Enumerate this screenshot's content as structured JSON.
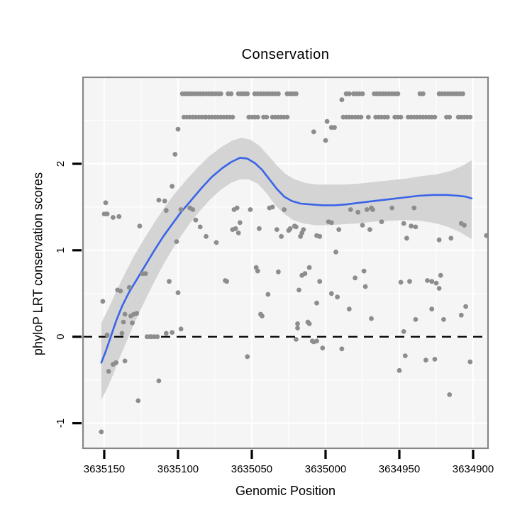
{
  "figure": {
    "title": "Conservation",
    "x_axis_title": "Genomic Position",
    "y_axis_title": "phyloP LRT conservation scores"
  },
  "chart_data": {
    "type": "scatter",
    "title": "Conservation",
    "xlabel": "Genomic Position",
    "ylabel": "phyloP LRT conservation scores",
    "x_axis_reversed": true,
    "x_ticks": [
      3635150,
      3635100,
      3635050,
      3635000,
      3634950,
      3634900
    ],
    "y_ticks": [
      -1,
      0,
      1,
      2
    ],
    "x_range": [
      3635164.4,
      3634889.9
    ],
    "y_range": [
      -1.29,
      3.0
    ],
    "grid": {
      "major": true,
      "minor": true
    },
    "legend": "none",
    "zero_line": {
      "y": 0,
      "style": "dashed"
    },
    "colors": {
      "background": "#ffffff",
      "panel_background": "#f5f5f5",
      "grid": "#ffffff",
      "panel_border": "#878787",
      "point": "#8d8d8d",
      "ribbon": "#d4d4d4",
      "smooth_line": "#3a64e8",
      "zero_line": "#000000",
      "text": "#000000"
    },
    "points": [
      [
        3635149,
        1.55
      ],
      [
        3635150,
        1.42
      ],
      [
        3635148,
        1.42
      ],
      [
        3635144,
        1.38
      ],
      [
        3635140,
        1.39
      ],
      [
        3635126,
        1.28
      ],
      [
        3635113,
        1.58
      ],
      [
        3635109,
        1.57
      ],
      [
        3635108,
        1.46
      ],
      [
        3635098,
        1.47
      ],
      [
        3635092,
        1.49
      ],
      [
        3635090,
        1.47
      ],
      [
        3635088,
        1.35
      ],
      [
        3635085,
        1.27
      ],
      [
        3635081,
        1.16
      ],
      [
        3635074,
        1.09
      ],
      [
        3635101,
        1.1
      ],
      [
        3635124,
        0.73
      ],
      [
        3635122,
        0.73
      ],
      [
        3635106,
        0.64
      ],
      [
        3635141,
        0.54
      ],
      [
        3635139,
        0.53
      ],
      [
        3635133,
        0.57
      ],
      [
        3635100,
        0.51
      ],
      [
        3635151,
        0.41
      ],
      [
        3635100,
        2.4
      ],
      [
        3635102,
        2.11
      ],
      [
        3635104,
        1.74
      ],
      [
        3634989,
        2.74
      ],
      [
        3634999,
        2.49
      ],
      [
        3634996,
        2.42
      ],
      [
        3634994,
        2.42
      ],
      [
        3635008,
        2.37
      ],
      [
        3635000,
        2.27
      ],
      [
        3635062,
        1.47
      ],
      [
        3635060,
        1.49
      ],
      [
        3635051,
        1.47
      ],
      [
        3635038,
        1.49
      ],
      [
        3635036,
        1.5
      ],
      [
        3635028,
        1.47
      ],
      [
        3635058,
        1.32
      ],
      [
        3635063,
        1.24
      ],
      [
        3635061,
        1.25
      ],
      [
        3635059,
        1.2
      ],
      [
        3635045,
        1.25
      ],
      [
        3635033,
        1.24
      ],
      [
        3635030,
        1.16
      ],
      [
        3635025,
        1.23
      ],
      [
        3635024,
        1.25
      ],
      [
        3635021,
        1.28
      ],
      [
        3635020,
        1.27
      ],
      [
        3635017,
        1.16
      ],
      [
        3635016,
        1.2
      ],
      [
        3635015,
        1.24
      ],
      [
        3635006,
        1.17
      ],
      [
        3635004,
        1.16
      ],
      [
        3634998,
        1.33
      ],
      [
        3634996,
        1.32
      ],
      [
        3634991,
        1.24
      ],
      [
        3634993,
        0.98
      ],
      [
        3635047,
        0.8
      ],
      [
        3635046,
        0.76
      ],
      [
        3635032,
        0.75
      ],
      [
        3635011,
        0.8
      ],
      [
        3635016,
        0.71
      ],
      [
        3635014,
        0.73
      ],
      [
        3635004,
        0.64
      ],
      [
        3635068,
        0.65
      ],
      [
        3635067,
        0.64
      ],
      [
        3635018,
        0.54
      ],
      [
        3634996,
        0.5
      ],
      [
        3634992,
        0.46
      ],
      [
        3635039,
        0.49
      ],
      [
        3635006,
        0.39
      ],
      [
        3634984,
        0.32
      ],
      [
        3635044,
        0.26
      ],
      [
        3635019,
        0.15
      ],
      [
        3635012,
        0.17
      ],
      [
        3635011,
        0.15
      ],
      [
        3634978,
        1.44
      ],
      [
        3634972,
        1.47
      ],
      [
        3634969,
        1.49
      ],
      [
        3634968,
        1.47
      ],
      [
        3634983,
        1.47
      ],
      [
        3634955,
        1.49
      ],
      [
        3634940,
        1.49
      ],
      [
        3634975,
        1.29
      ],
      [
        3634970,
        1.24
      ],
      [
        3634962,
        1.33
      ],
      [
        3634947,
        1.31
      ],
      [
        3634942,
        1.28
      ],
      [
        3634939,
        1.27
      ],
      [
        3634908,
        1.31
      ],
      [
        3634906,
        1.29
      ],
      [
        3634945,
        1.14
      ],
      [
        3634923,
        1.12
      ],
      [
        3634915,
        1.14
      ],
      [
        3634891,
        1.17
      ],
      [
        3634980,
        0.68
      ],
      [
        3634974,
        0.76
      ],
      [
        3634973,
        0.58
      ],
      [
        3634949,
        0.63
      ],
      [
        3634943,
        0.64
      ],
      [
        3634931,
        0.65
      ],
      [
        3634928,
        0.64
      ],
      [
        3634925,
        0.62
      ],
      [
        3634922,
        0.71
      ],
      [
        3634923,
        0.56
      ],
      [
        3634928,
        0.32
      ],
      [
        3634905,
        0.35
      ],
      [
        3634908,
        0.25
      ],
      [
        3634969,
        0.21
      ],
      [
        3634939,
        0.2
      ],
      [
        3634920,
        0.2
      ],
      [
        3635136,
        0.26
      ],
      [
        3635132,
        0.24
      ],
      [
        3635130,
        0.26
      ],
      [
        3635128,
        0.27
      ],
      [
        3635137,
        0.17
      ],
      [
        3635131,
        0.16
      ],
      [
        3635148,
        0.02
      ],
      [
        3635138,
        0.04
      ],
      [
        3635043,
        0.24
      ],
      [
        3635098,
        0.09
      ],
      [
        3635108,
        0.04
      ],
      [
        3635104,
        0.05
      ],
      [
        3635121,
        0.0
      ],
      [
        3635119,
        0.0
      ],
      [
        3635118,
        0.0
      ],
      [
        3635116,
        0.0
      ],
      [
        3635114,
        0.0
      ],
      [
        3635053,
        -0.23
      ],
      [
        3635144,
        -0.32
      ],
      [
        3635142,
        -0.3
      ],
      [
        3635136,
        -0.28
      ],
      [
        3635147,
        -0.4
      ],
      [
        3635113,
        -0.51
      ],
      [
        3635127,
        -0.74
      ],
      [
        3635152,
        -1.1
      ],
      [
        3635019,
        0.1
      ],
      [
        3635020,
        -0.03
      ],
      [
        3635009,
        -0.05
      ],
      [
        3635008,
        -0.06
      ],
      [
        3635006,
        -0.05
      ],
      [
        3635002,
        -0.13
      ],
      [
        3634989,
        -0.14
      ],
      [
        3634947,
        0.06
      ],
      [
        3634946,
        -0.22
      ],
      [
        3634932,
        -0.27
      ],
      [
        3634926,
        -0.26
      ],
      [
        3634950,
        -0.39
      ],
      [
        3634902,
        -0.29
      ],
      [
        3634916,
        -0.67
      ]
    ],
    "point_runs": [
      {
        "value": 2.81,
        "step": 2,
        "ranges": [
          [
            3635091,
            3635098
          ],
          [
            3635083,
            3635089
          ],
          [
            3635071,
            3635081
          ],
          [
            3635064,
            3635066
          ],
          [
            3635053,
            3635059
          ],
          [
            3635044,
            3635049
          ],
          [
            3635036,
            3635043
          ],
          [
            3635032,
            3635034
          ],
          [
            3635020,
            3635027
          ],
          [
            3634984,
            3634987
          ],
          [
            3634979,
            3634982
          ],
          [
            3634975,
            3634977
          ],
          [
            3634951,
            3634968
          ],
          [
            3634934,
            3634937
          ],
          [
            3634919,
            3634923
          ],
          [
            3634907,
            3634917
          ]
        ]
      },
      {
        "value": 2.54,
        "step": 2,
        "ranges": [
          [
            3635082,
            3635096
          ],
          [
            3635073,
            3635081
          ],
          [
            3635063,
            3635071
          ],
          [
            3635046,
            3635053
          ],
          [
            3635040,
            3635043
          ],
          [
            3635036,
            3635037
          ],
          [
            3635026,
            3635034
          ],
          [
            3634976,
            3634989
          ],
          [
            3634971,
            3634972
          ],
          [
            3634958,
            3634967
          ],
          [
            3634949,
            3634954
          ],
          [
            3634940,
            3634945
          ],
          [
            3634926,
            3634938
          ],
          [
            3634916,
            3634919
          ],
          [
            3634902,
            3634911
          ]
        ]
      }
    ],
    "smooth_line": [
      [
        3635152,
        -0.3
      ],
      [
        3635149,
        -0.17
      ],
      [
        3635146,
        -0.02
      ],
      [
        3635142,
        0.18
      ],
      [
        3635138,
        0.35
      ],
      [
        3635133,
        0.52
      ],
      [
        3635128,
        0.66
      ],
      [
        3635122,
        0.83
      ],
      [
        3635116,
        1.0
      ],
      [
        3635110,
        1.16
      ],
      [
        3635104,
        1.3
      ],
      [
        3635098,
        1.44
      ],
      [
        3635091,
        1.58
      ],
      [
        3635084,
        1.72
      ],
      [
        3635077,
        1.85
      ],
      [
        3635070,
        1.95
      ],
      [
        3635064,
        2.02
      ],
      [
        3635058,
        2.07
      ],
      [
        3635053,
        2.06
      ],
      [
        3635048,
        2.01
      ],
      [
        3635043,
        1.93
      ],
      [
        3635038,
        1.82
      ],
      [
        3635033,
        1.71
      ],
      [
        3635028,
        1.62
      ],
      [
        3635023,
        1.57
      ],
      [
        3635017,
        1.54
      ],
      [
        3635010,
        1.53
      ],
      [
        3635002,
        1.52
      ],
      [
        3634994,
        1.52
      ],
      [
        3634986,
        1.53
      ],
      [
        3634977,
        1.55
      ],
      [
        3634967,
        1.57
      ],
      [
        3634957,
        1.59
      ],
      [
        3634947,
        1.61
      ],
      [
        3634937,
        1.63
      ],
      [
        3634927,
        1.64
      ],
      [
        3634918,
        1.64
      ],
      [
        3634910,
        1.63
      ],
      [
        3634905,
        1.62
      ],
      [
        3634901,
        1.6
      ]
    ],
    "ribbon_upper": [
      [
        3635152,
        0.16
      ],
      [
        3635147,
        0.33
      ],
      [
        3635142,
        0.52
      ],
      [
        3635136,
        0.73
      ],
      [
        3635130,
        0.93
      ],
      [
        3635123,
        1.13
      ],
      [
        3635116,
        1.32
      ],
      [
        3635109,
        1.5
      ],
      [
        3635102,
        1.66
      ],
      [
        3635094,
        1.82
      ],
      [
        3635086,
        1.97
      ],
      [
        3635078,
        2.1
      ],
      [
        3635070,
        2.2
      ],
      [
        3635063,
        2.27
      ],
      [
        3635057,
        2.3
      ],
      [
        3635051,
        2.28
      ],
      [
        3635045,
        2.21
      ],
      [
        3635039,
        2.1
      ],
      [
        3635033,
        1.98
      ],
      [
        3635027,
        1.88
      ],
      [
        3635021,
        1.82
      ],
      [
        3635014,
        1.78
      ],
      [
        3635006,
        1.76
      ],
      [
        3634997,
        1.76
      ],
      [
        3634988,
        1.76
      ],
      [
        3634978,
        1.77
      ],
      [
        3634967,
        1.79
      ],
      [
        3634956,
        1.81
      ],
      [
        3634945,
        1.83
      ],
      [
        3634934,
        1.86
      ],
      [
        3634924,
        1.88
      ],
      [
        3634915,
        1.92
      ],
      [
        3634908,
        1.97
      ],
      [
        3634901,
        2.04
      ]
    ],
    "ribbon_lower": [
      [
        3635152,
        -0.73
      ],
      [
        3635148,
        -0.6
      ],
      [
        3635144,
        -0.44
      ],
      [
        3635140,
        -0.26
      ],
      [
        3635135,
        -0.06
      ],
      [
        3635130,
        0.14
      ],
      [
        3635124,
        0.36
      ],
      [
        3635118,
        0.57
      ],
      [
        3635112,
        0.77
      ],
      [
        3635106,
        0.95
      ],
      [
        3635099,
        1.14
      ],
      [
        3635092,
        1.31
      ],
      [
        3635085,
        1.46
      ],
      [
        3635078,
        1.59
      ],
      [
        3635071,
        1.7
      ],
      [
        3635064,
        1.78
      ],
      [
        3635058,
        1.82
      ],
      [
        3635052,
        1.82
      ],
      [
        3635046,
        1.77
      ],
      [
        3635040,
        1.66
      ],
      [
        3635034,
        1.52
      ],
      [
        3635028,
        1.42
      ],
      [
        3635022,
        1.35
      ],
      [
        3635015,
        1.31
      ],
      [
        3635007,
        1.29
      ],
      [
        3634998,
        1.29
      ],
      [
        3634989,
        1.3
      ],
      [
        3634979,
        1.31
      ],
      [
        3634968,
        1.33
      ],
      [
        3634957,
        1.34
      ],
      [
        3634946,
        1.35
      ],
      [
        3634935,
        1.34
      ],
      [
        3634925,
        1.31
      ],
      [
        3634917,
        1.27
      ],
      [
        3634909,
        1.21
      ],
      [
        3634901,
        1.13
      ]
    ]
  }
}
